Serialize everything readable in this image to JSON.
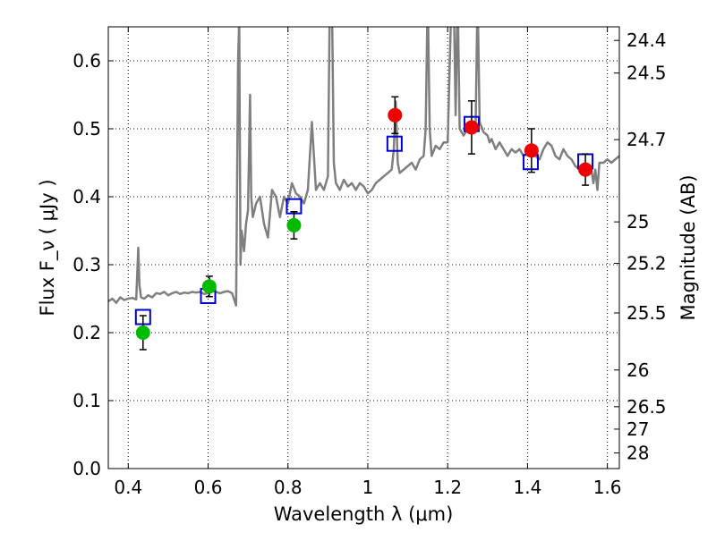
{
  "chart_data": {
    "type": "scatter",
    "xlabel": "Wavelength  λ (μm)",
    "ylabel": "Flux  F_ν  ( μJy )",
    "ylabel_right": "Magnitude (AB)",
    "xlim": [
      0.35,
      1.63
    ],
    "ylim": [
      0.0,
      0.65
    ],
    "grid": true,
    "grid_style": "dotted",
    "x_ticks": [
      0.4,
      0.6,
      0.8,
      1.0,
      1.2,
      1.4,
      1.6
    ],
    "x_tick_labels": [
      "0.4",
      "0.6",
      "0.8",
      "1",
      "1.2",
      "1.4",
      "1.6"
    ],
    "y_ticks": [
      0.0,
      0.1,
      0.2,
      0.3,
      0.4,
      0.5,
      0.6
    ],
    "y_tick_labels": [
      "0.0",
      "0.1",
      "0.2",
      "0.3",
      "0.4",
      "0.5",
      "0.6"
    ],
    "right_axis_ticks": [
      {
        "label": "24.4",
        "flux": 0.63
      },
      {
        "label": "24.5",
        "flux": 0.582
      },
      {
        "label": "24.7",
        "flux": 0.484
      },
      {
        "label": "25",
        "flux": 0.363
      },
      {
        "label": "25.2",
        "flux": 0.302
      },
      {
        "label": "25.5",
        "flux": 0.229
      },
      {
        "label": "26",
        "flux": 0.145
      },
      {
        "label": "26.5",
        "flux": 0.091
      },
      {
        "label": "27",
        "flux": 0.058
      },
      {
        "label": "28",
        "flux": 0.023
      }
    ],
    "series": [
      {
        "kind": "line",
        "color": "#7f7f7f",
        "x": [
          0.35,
          0.36,
          0.37,
          0.38,
          0.39,
          0.4,
          0.41,
          0.42,
          0.425,
          0.428,
          0.432,
          0.44,
          0.45,
          0.46,
          0.47,
          0.48,
          0.49,
          0.5,
          0.51,
          0.52,
          0.53,
          0.54,
          0.55,
          0.56,
          0.57,
          0.58,
          0.59,
          0.6,
          0.61,
          0.62,
          0.63,
          0.64,
          0.65,
          0.66,
          0.67,
          0.675,
          0.678,
          0.681,
          0.684,
          0.69,
          0.695,
          0.7,
          0.705,
          0.708,
          0.712,
          0.72,
          0.73,
          0.74,
          0.75,
          0.76,
          0.77,
          0.78,
          0.79,
          0.8,
          0.81,
          0.82,
          0.83,
          0.84,
          0.85,
          0.86,
          0.87,
          0.88,
          0.89,
          0.9,
          0.905,
          0.91,
          0.915,
          0.92,
          0.93,
          0.94,
          0.95,
          0.96,
          0.97,
          0.98,
          0.99,
          1.0,
          1.01,
          1.02,
          1.03,
          1.04,
          1.05,
          1.06,
          1.065,
          1.07,
          1.075,
          1.08,
          1.09,
          1.1,
          1.11,
          1.12,
          1.13,
          1.14,
          1.145,
          1.15,
          1.155,
          1.16,
          1.17,
          1.18,
          1.19,
          1.2,
          1.21,
          1.215,
          1.22,
          1.225,
          1.23,
          1.24,
          1.25,
          1.26,
          1.27,
          1.275,
          1.28,
          1.29,
          1.3,
          1.305,
          1.31,
          1.32,
          1.33,
          1.34,
          1.35,
          1.36,
          1.37,
          1.38,
          1.39,
          1.4,
          1.41,
          1.42,
          1.43,
          1.44,
          1.45,
          1.46,
          1.47,
          1.48,
          1.49,
          1.5,
          1.51,
          1.52,
          1.53,
          1.54,
          1.55,
          1.56,
          1.565,
          1.57,
          1.575,
          1.58,
          1.59,
          1.6,
          1.61,
          1.62,
          1.63
        ],
        "y": [
          0.246,
          0.25,
          0.244,
          0.252,
          0.248,
          0.25,
          0.251,
          0.249,
          0.325,
          0.27,
          0.252,
          0.25,
          0.255,
          0.252,
          0.258,
          0.257,
          0.26,
          0.255,
          0.258,
          0.26,
          0.257,
          0.259,
          0.258,
          0.26,
          0.259,
          0.26,
          0.257,
          0.258,
          0.262,
          0.26,
          0.258,
          0.26,
          0.261,
          0.258,
          0.24,
          0.6,
          0.66,
          0.3,
          0.35,
          0.32,
          0.36,
          0.38,
          0.55,
          0.4,
          0.37,
          0.39,
          0.4,
          0.36,
          0.34,
          0.41,
          0.4,
          0.37,
          0.4,
          0.39,
          0.42,
          0.405,
          0.4,
          0.39,
          0.41,
          0.51,
          0.41,
          0.42,
          0.41,
          0.43,
          0.7,
          0.7,
          0.45,
          0.42,
          0.41,
          0.425,
          0.415,
          0.42,
          0.41,
          0.42,
          0.415,
          0.405,
          0.41,
          0.42,
          0.425,
          0.43,
          0.435,
          0.44,
          0.47,
          0.54,
          0.45,
          0.435,
          0.44,
          0.445,
          0.45,
          0.44,
          0.455,
          0.46,
          0.5,
          0.7,
          0.5,
          0.46,
          0.475,
          0.47,
          0.48,
          0.48,
          0.7,
          0.7,
          0.52,
          0.7,
          0.5,
          0.49,
          0.5,
          0.505,
          0.5,
          0.7,
          0.51,
          0.495,
          0.49,
          0.48,
          0.485,
          0.47,
          0.48,
          0.47,
          0.46,
          0.47,
          0.465,
          0.47,
          0.46,
          0.465,
          0.47,
          0.46,
          0.455,
          0.47,
          0.48,
          0.475,
          0.46,
          0.455,
          0.47,
          0.46,
          0.455,
          0.445,
          0.44,
          0.445,
          0.435,
          0.44,
          0.42,
          0.44,
          0.41,
          0.45,
          0.45,
          0.455,
          0.45,
          0.455,
          0.46
        ]
      },
      {
        "kind": "square",
        "color": "#0000cc",
        "x": [
          0.437,
          0.6,
          0.815,
          1.067,
          1.26,
          1.408,
          1.545
        ],
        "y": [
          0.223,
          0.254,
          0.386,
          0.478,
          0.507,
          0.451,
          0.452
        ]
      },
      {
        "kind": "circle",
        "color": "#00bb00",
        "x": [
          0.437,
          0.603,
          0.815
        ],
        "y": [
          0.2,
          0.268,
          0.358
        ],
        "err": [
          0.025,
          0.015,
          0.02
        ]
      },
      {
        "kind": "circle",
        "color": "#ee0000",
        "x": [
          1.068,
          1.26,
          1.41,
          1.545
        ],
        "y": [
          0.52,
          0.502,
          0.468,
          0.44
        ],
        "err": [
          0.027,
          0.039,
          0.032,
          0.023
        ]
      }
    ]
  }
}
